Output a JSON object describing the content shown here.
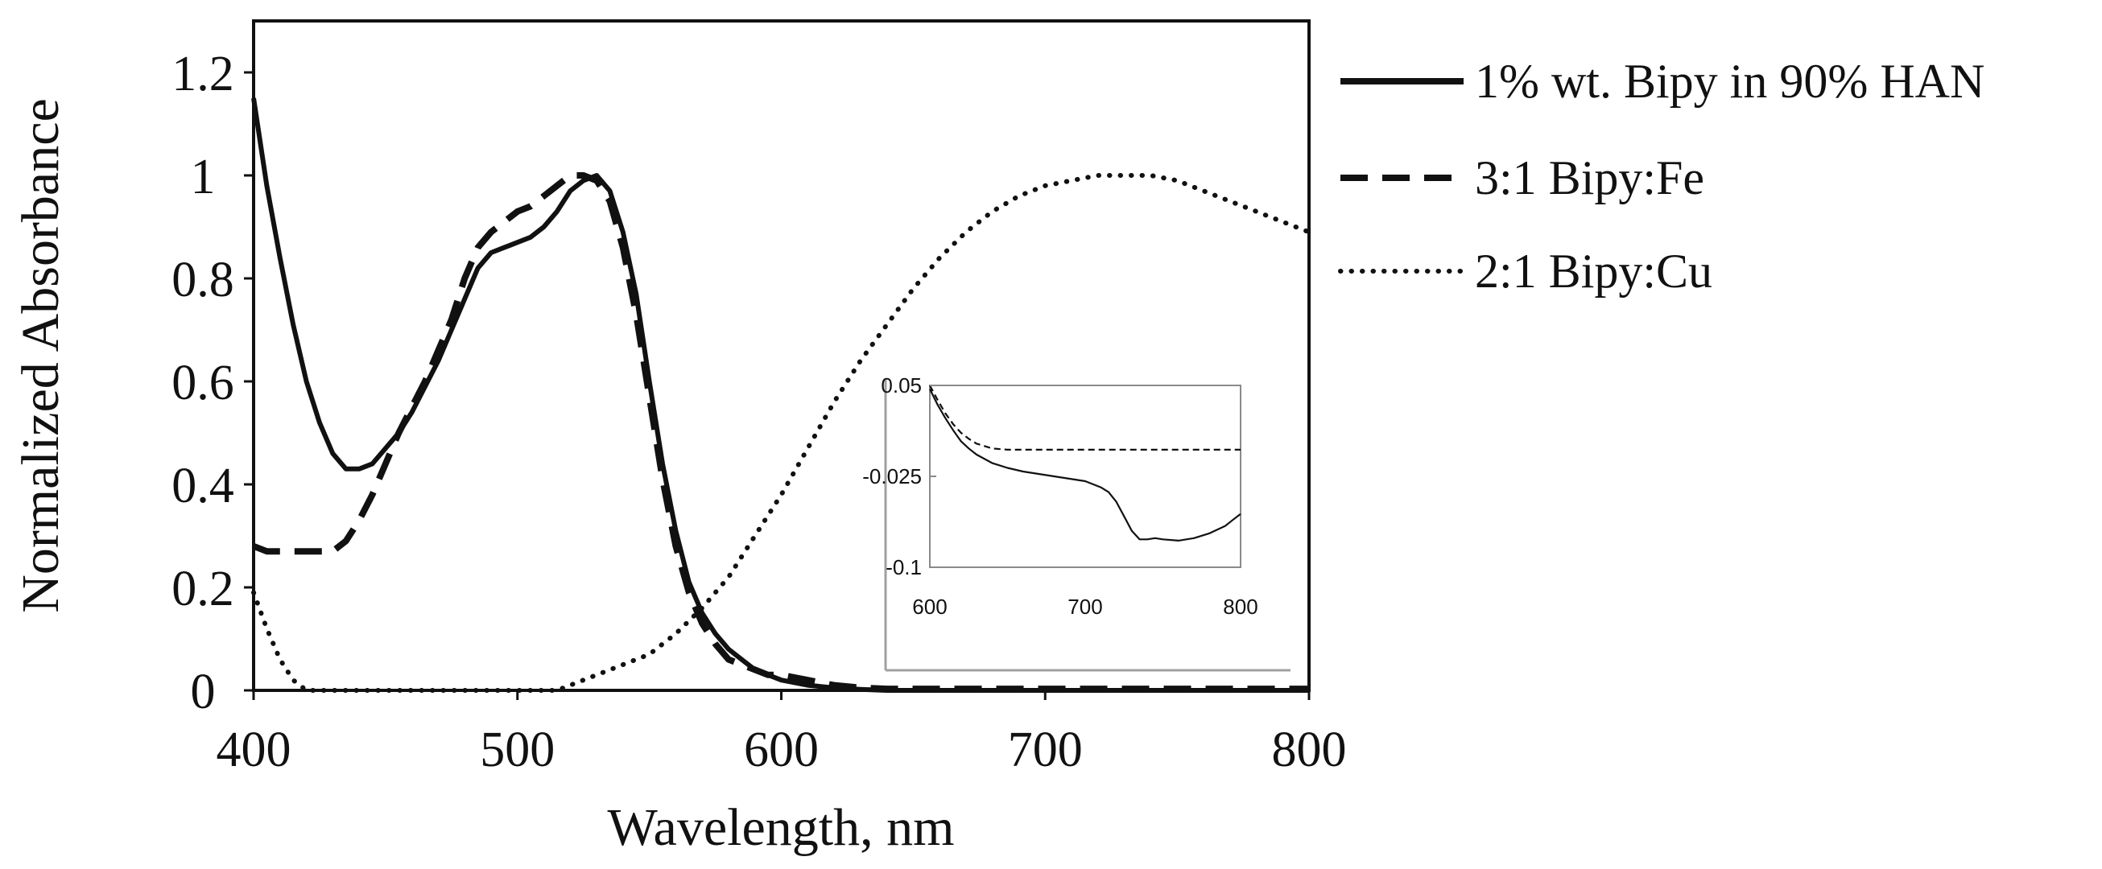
{
  "chart_data": [
    {
      "type": "line",
      "xlabel": "Wavelength, nm",
      "ylabel": "Normalized Absorbance",
      "xlim": [
        400,
        800
      ],
      "ylim": [
        0,
        1.3
      ],
      "xticks": [
        "400",
        "500",
        "600",
        "700",
        "800"
      ],
      "yticks": [
        "0",
        "0.2",
        "0.4",
        "0.6",
        "0.8",
        "1",
        "1.2"
      ],
      "grid": false,
      "legend_position": "right",
      "series": [
        {
          "name": "1% wt. Bipy in 90% HAN",
          "style": "solid",
          "x": [
            400,
            405,
            410,
            415,
            420,
            425,
            430,
            435,
            440,
            445,
            450,
            455,
            460,
            465,
            470,
            475,
            480,
            485,
            490,
            495,
            500,
            505,
            510,
            515,
            520,
            525,
            530,
            535,
            540,
            545,
            550,
            555,
            560,
            565,
            570,
            575,
            580,
            585,
            590,
            595,
            600,
            610,
            620,
            630,
            640,
            660,
            680,
            700,
            720,
            740,
            760,
            780,
            800
          ],
          "y": [
            1.15,
            0.98,
            0.84,
            0.71,
            0.6,
            0.52,
            0.46,
            0.43,
            0.43,
            0.44,
            0.47,
            0.5,
            0.54,
            0.59,
            0.64,
            0.7,
            0.76,
            0.82,
            0.85,
            0.86,
            0.87,
            0.88,
            0.9,
            0.93,
            0.97,
            0.99,
            1.0,
            0.97,
            0.89,
            0.77,
            0.6,
            0.44,
            0.31,
            0.21,
            0.15,
            0.11,
            0.08,
            0.06,
            0.04,
            0.03,
            0.02,
            0.01,
            0.005,
            0.002,
            0,
            0,
            0,
            0,
            0,
            0,
            0,
            0,
            0
          ]
        },
        {
          "name": "3:1 Bipy:Fe",
          "style": "dashed",
          "x": [
            400,
            405,
            410,
            415,
            420,
            425,
            430,
            435,
            440,
            445,
            450,
            455,
            460,
            465,
            470,
            475,
            480,
            485,
            490,
            495,
            500,
            505,
            510,
            515,
            520,
            525,
            530,
            535,
            540,
            545,
            550,
            555,
            560,
            565,
            570,
            575,
            580,
            585,
            590,
            595,
            600,
            610,
            620,
            630,
            640,
            660,
            680,
            700,
            720,
            740,
            760,
            780,
            800
          ],
          "y": [
            0.28,
            0.27,
            0.27,
            0.27,
            0.27,
            0.27,
            0.27,
            0.29,
            0.33,
            0.38,
            0.44,
            0.5,
            0.55,
            0.6,
            0.66,
            0.72,
            0.8,
            0.86,
            0.89,
            0.91,
            0.93,
            0.94,
            0.96,
            0.98,
            1.0,
            1.0,
            0.99,
            0.95,
            0.86,
            0.73,
            0.57,
            0.41,
            0.28,
            0.19,
            0.13,
            0.09,
            0.06,
            0.05,
            0.04,
            0.03,
            0.03,
            0.02,
            0.01,
            0.005,
            0.003,
            0.003,
            0.003,
            0.003,
            0.003,
            0.003,
            0.003,
            0.003,
            0.003
          ]
        },
        {
          "name": "2:1 Bipy:Cu",
          "style": "dotted",
          "x": [
            400,
            405,
            410,
            415,
            420,
            425,
            430,
            440,
            460,
            480,
            500,
            515,
            520,
            525,
            530,
            535,
            540,
            550,
            560,
            570,
            580,
            590,
            600,
            610,
            620,
            630,
            640,
            650,
            660,
            670,
            680,
            690,
            700,
            710,
            720,
            730,
            740,
            750,
            760,
            770,
            780,
            790,
            800
          ],
          "y": [
            0.19,
            0.12,
            0.06,
            0.02,
            0.0,
            0.0,
            0.0,
            0.0,
            0.0,
            0.0,
            0.0,
            0.0,
            0.01,
            0.02,
            0.03,
            0.04,
            0.05,
            0.07,
            0.11,
            0.16,
            0.22,
            0.3,
            0.38,
            0.47,
            0.56,
            0.64,
            0.71,
            0.78,
            0.84,
            0.89,
            0.93,
            0.96,
            0.98,
            0.99,
            1.0,
            1.0,
            1.0,
            0.99,
            0.97,
            0.95,
            0.93,
            0.91,
            0.89
          ]
        }
      ]
    },
    {
      "type": "line",
      "title": "",
      "xlabel": "",
      "ylabel": "",
      "xlim": [
        600,
        800
      ],
      "ylim": [
        -0.1,
        0.05
      ],
      "xticks": [
        "600",
        "700",
        "800"
      ],
      "yticks": [
        "0.05",
        "-0.025",
        "-0.1"
      ],
      "grid": false,
      "series": [
        {
          "name": "solid",
          "style": "solid",
          "x": [
            600,
            605,
            610,
            615,
            620,
            625,
            630,
            640,
            650,
            660,
            670,
            680,
            690,
            700,
            710,
            715,
            720,
            725,
            730,
            735,
            740,
            745,
            750,
            760,
            770,
            780,
            790,
            795,
            800
          ],
          "y": [
            0.047,
            0.034,
            0.023,
            0.013,
            0.004,
            -0.002,
            -0.007,
            -0.014,
            -0.018,
            -0.021,
            -0.023,
            -0.025,
            -0.027,
            -0.029,
            -0.034,
            -0.038,
            -0.046,
            -0.058,
            -0.07,
            -0.077,
            -0.077,
            -0.076,
            -0.077,
            -0.078,
            -0.076,
            -0.072,
            -0.066,
            -0.061,
            -0.056
          ]
        },
        {
          "name": "dashed",
          "style": "dashed",
          "x": [
            600,
            605,
            610,
            615,
            620,
            625,
            630,
            640,
            650,
            660,
            680,
            700,
            720,
            740,
            760,
            780,
            800
          ],
          "y": [
            0.05,
            0.038,
            0.027,
            0.018,
            0.011,
            0.006,
            0.002,
            -0.002,
            -0.003,
            -0.003,
            -0.003,
            -0.003,
            -0.003,
            -0.003,
            -0.003,
            -0.003,
            -0.003
          ]
        }
      ]
    }
  ]
}
